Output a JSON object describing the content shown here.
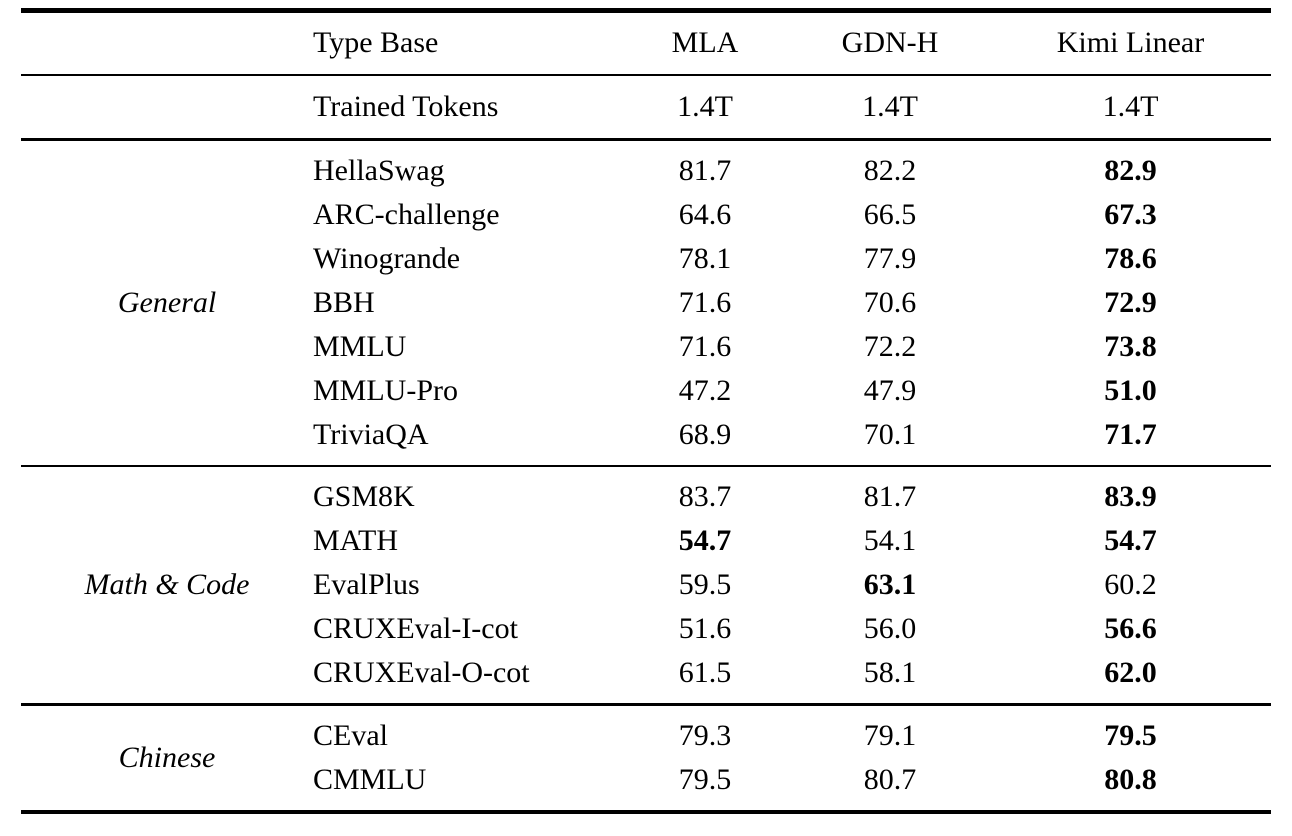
{
  "table": {
    "header": {
      "row_label_col": "Type Base",
      "columns": [
        "MLA",
        "GDN-H",
        "Kimi Linear"
      ]
    },
    "meta_row": {
      "label": "Trained Tokens",
      "values": [
        "1.4T",
        "1.4T",
        "1.4T"
      ]
    },
    "sections": [
      {
        "category": "General",
        "rows": [
          {
            "benchmark": "HellaSwag",
            "values": [
              "81.7",
              "82.2",
              "82.9"
            ],
            "bold": [
              false,
              false,
              true
            ]
          },
          {
            "benchmark": "ARC-challenge",
            "values": [
              "64.6",
              "66.5",
              "67.3"
            ],
            "bold": [
              false,
              false,
              true
            ]
          },
          {
            "benchmark": "Winogrande",
            "values": [
              "78.1",
              "77.9",
              "78.6"
            ],
            "bold": [
              false,
              false,
              true
            ]
          },
          {
            "benchmark": "BBH",
            "values": [
              "71.6",
              "70.6",
              "72.9"
            ],
            "bold": [
              false,
              false,
              true
            ]
          },
          {
            "benchmark": "MMLU",
            "values": [
              "71.6",
              "72.2",
              "73.8"
            ],
            "bold": [
              false,
              false,
              true
            ]
          },
          {
            "benchmark": "MMLU-Pro",
            "values": [
              "47.2",
              "47.9",
              "51.0"
            ],
            "bold": [
              false,
              false,
              true
            ]
          },
          {
            "benchmark": "TriviaQA",
            "values": [
              "68.9",
              "70.1",
              "71.7"
            ],
            "bold": [
              false,
              false,
              true
            ]
          }
        ]
      },
      {
        "category": "Math & Code",
        "rows": [
          {
            "benchmark": "GSM8K",
            "values": [
              "83.7",
              "81.7",
              "83.9"
            ],
            "bold": [
              false,
              false,
              true
            ]
          },
          {
            "benchmark": "MATH",
            "values": [
              "54.7",
              "54.1",
              "54.7"
            ],
            "bold": [
              true,
              false,
              true
            ]
          },
          {
            "benchmark": "EvalPlus",
            "values": [
              "59.5",
              "63.1",
              "60.2"
            ],
            "bold": [
              false,
              true,
              false
            ]
          },
          {
            "benchmark": "CRUXEval-I-cot",
            "values": [
              "51.6",
              "56.0",
              "56.6"
            ],
            "bold": [
              false,
              false,
              true
            ]
          },
          {
            "benchmark": "CRUXEval-O-cot",
            "values": [
              "61.5",
              "58.1",
              "62.0"
            ],
            "bold": [
              false,
              false,
              true
            ]
          }
        ]
      },
      {
        "category": "Chinese",
        "rows": [
          {
            "benchmark": "CEval",
            "values": [
              "79.3",
              "79.1",
              "79.5"
            ],
            "bold": [
              false,
              false,
              true
            ]
          },
          {
            "benchmark": "CMMLU",
            "values": [
              "79.5",
              "80.7",
              "80.8"
            ],
            "bold": [
              false,
              false,
              true
            ]
          }
        ]
      }
    ]
  },
  "colors": {
    "text": "#000000",
    "background": "#ffffff",
    "rule": "#000000"
  }
}
